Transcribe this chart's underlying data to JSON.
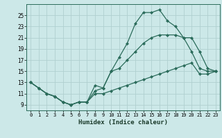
{
  "xlabel": "Humidex (Indice chaleur)",
  "ylabel": "",
  "background_color": "#cce8e8",
  "grid_color": "#b0d0d0",
  "line_color": "#2a6b5a",
  "xlim": [
    -0.5,
    23.5
  ],
  "ylim": [
    8.0,
    27.0
  ],
  "x_ticks": [
    0,
    1,
    2,
    3,
    4,
    5,
    6,
    7,
    8,
    9,
    10,
    11,
    12,
    13,
    14,
    15,
    16,
    17,
    18,
    19,
    20,
    21,
    22,
    23
  ],
  "y_ticks": [
    9,
    11,
    13,
    15,
    17,
    19,
    21,
    23,
    25
  ],
  "line1_x": [
    0,
    1,
    2,
    3,
    4,
    5,
    6,
    7,
    8,
    9,
    10,
    11,
    12,
    13,
    14,
    15,
    16,
    17,
    18,
    19,
    20,
    21,
    22,
    23
  ],
  "line1_y": [
    13,
    12,
    11,
    10.5,
    9.5,
    9,
    9.5,
    9.5,
    12.5,
    12,
    15,
    17.5,
    20,
    23.5,
    25.5,
    25.5,
    26,
    24,
    23,
    21,
    18.5,
    15.5,
    15,
    15
  ],
  "line2_x": [
    0,
    1,
    2,
    3,
    4,
    5,
    6,
    7,
    8,
    9,
    10,
    11,
    12,
    13,
    14,
    15,
    16,
    17,
    18,
    19,
    20,
    21,
    22,
    23
  ],
  "line2_y": [
    13,
    12,
    11,
    10.5,
    9.5,
    9,
    9.5,
    9.5,
    11.5,
    12,
    15,
    15.5,
    17,
    18.5,
    20,
    21,
    21.5,
    21.5,
    21.5,
    21,
    21,
    18.5,
    15.5,
    15
  ],
  "line3_x": [
    0,
    1,
    2,
    3,
    4,
    5,
    6,
    7,
    8,
    9,
    10,
    11,
    12,
    13,
    14,
    15,
    16,
    17,
    18,
    19,
    20,
    21,
    22,
    23
  ],
  "line3_y": [
    13,
    12,
    11,
    10.5,
    9.5,
    9,
    9.5,
    9.5,
    11,
    11,
    11.5,
    12,
    12.5,
    13,
    13.5,
    14,
    14.5,
    15,
    15.5,
    16,
    16.5,
    14.5,
    14.5,
    15
  ]
}
